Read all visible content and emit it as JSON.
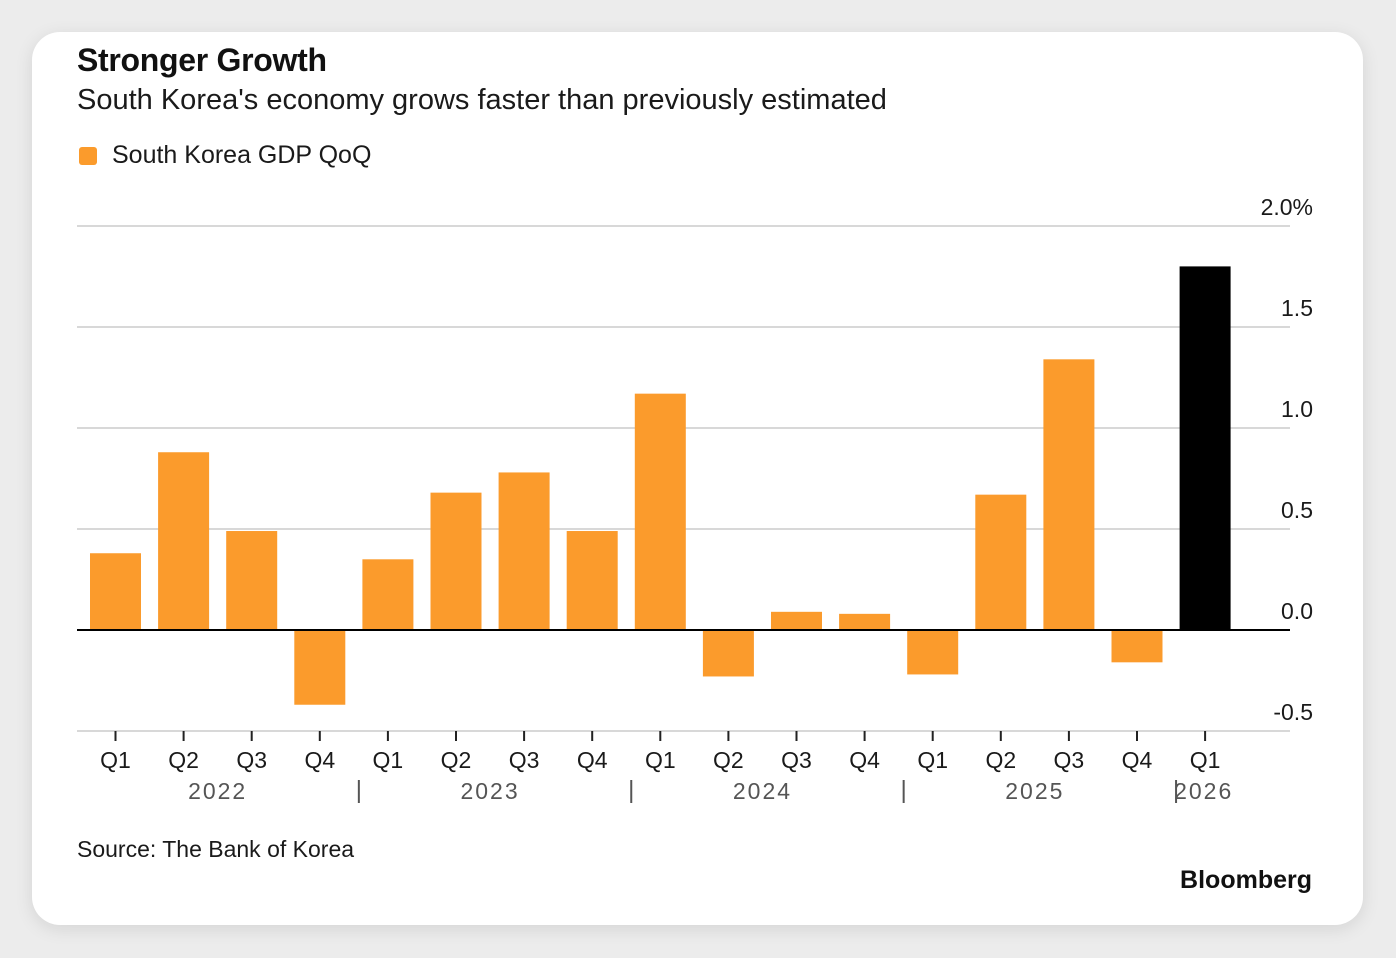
{
  "header": {
    "title": "Stronger Growth",
    "subtitle": "South Korea's economy grows faster than previously estimated"
  },
  "legend": {
    "label": "South Korea GDP QoQ",
    "color": "#fb9b2c"
  },
  "footer": {
    "source": "Source: The Bank of Korea",
    "brand": "Bloomberg"
  },
  "colors": {
    "bar": "#fb9b2c",
    "highlight": "#000000",
    "grid": "#cccccc",
    "zero_line": "#000000",
    "tick_text": "#1a1a1a",
    "year_text": "#555555"
  },
  "chart_data": {
    "type": "bar",
    "title": "Stronger Growth",
    "subtitle": "South Korea's economy grows faster than previously estimated",
    "categories": [
      "Q1",
      "Q2",
      "Q3",
      "Q4",
      "Q1",
      "Q2",
      "Q3",
      "Q4",
      "Q1",
      "Q2",
      "Q3",
      "Q4",
      "Q1",
      "Q2",
      "Q3",
      "Q4",
      "Q1"
    ],
    "year_groups": [
      {
        "label": "2022",
        "start": 0,
        "end": 3
      },
      {
        "label": "2023",
        "start": 4,
        "end": 7
      },
      {
        "label": "2024",
        "start": 8,
        "end": 11
      },
      {
        "label": "2025",
        "start": 12,
        "end": 15
      },
      {
        "label": "2026",
        "start": 16,
        "end": 16
      }
    ],
    "series": [
      {
        "name": "South Korea GDP QoQ",
        "values": [
          0.38,
          0.88,
          0.49,
          -0.37,
          0.35,
          0.68,
          0.78,
          0.49,
          1.17,
          -0.23,
          0.09,
          0.08,
          -0.22,
          0.67,
          1.34,
          -0.16,
          1.8
        ],
        "highlight_index": 16
      }
    ],
    "ylim": [
      -0.5,
      2.0
    ],
    "yticks": [
      {
        "value": 2.0,
        "label": "2.0%"
      },
      {
        "value": 1.5,
        "label": "1.5"
      },
      {
        "value": 1.0,
        "label": "1.0"
      },
      {
        "value": 0.5,
        "label": "0.5"
      },
      {
        "value": 0.0,
        "label": "0.0"
      },
      {
        "value": -0.5,
        "label": "-0.5"
      }
    ],
    "xlabel": "",
    "ylabel": "",
    "grid": true,
    "y_axis_side": "right",
    "legend_position": "top-left"
  }
}
